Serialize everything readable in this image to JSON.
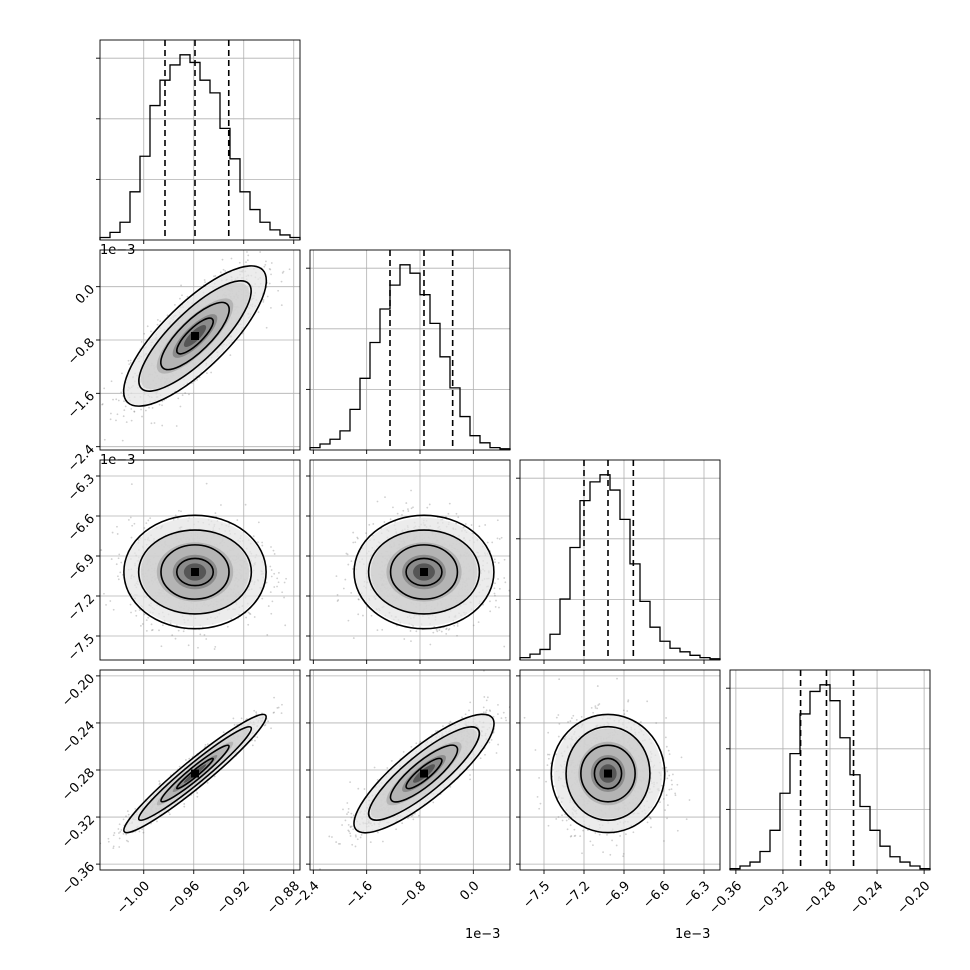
{
  "chart_data": {
    "type": "corner",
    "grid": true,
    "parameters": [
      {
        "index": 0,
        "range": [
          -1.035,
          -0.875
        ],
        "ticks": [
          -1.0,
          -0.96,
          -0.92,
          -0.88
        ],
        "tick_labels": [
          "−1.00",
          "−0.96",
          "−0.92",
          "−0.88"
        ],
        "offset_text": "",
        "quantiles": [
          -0.983,
          -0.959,
          -0.932
        ],
        "hist_counts": [
          2,
          6,
          14,
          38,
          66,
          106,
          126,
          138,
          146,
          140,
          126,
          116,
          88,
          64,
          38,
          24,
          14,
          8,
          4,
          2
        ]
      },
      {
        "index": 1,
        "range": [
          -2.45,
          0.55
        ],
        "ticks": [
          -2.4,
          -1.6,
          -0.8,
          0.0
        ],
        "tick_labels": [
          "−2.4",
          "−1.6",
          "−0.8",
          "0.0"
        ],
        "offset_text": "1e−3",
        "quantiles": [
          -1.25,
          -0.74,
          -0.31
        ],
        "hist_counts": [
          2,
          5,
          9,
          16,
          34,
          60,
          90,
          118,
          138,
          155,
          148,
          130,
          106,
          78,
          52,
          28,
          12,
          6,
          2,
          1
        ]
      },
      {
        "index": 2,
        "range": [
          -7.68,
          -6.18
        ],
        "ticks": [
          -7.5,
          -7.2,
          -6.9,
          -6.6,
          -6.3
        ],
        "tick_labels": [
          "−7.5",
          "−7.2",
          "−6.9",
          "−6.6",
          "−6.3"
        ],
        "offset_text": "1e−3",
        "quantiles": [
          -7.2,
          -7.02,
          -6.83
        ],
        "hist_counts": [
          2,
          5,
          9,
          22,
          52,
          96,
          136,
          152,
          158,
          145,
          120,
          82,
          50,
          28,
          16,
          10,
          7,
          4,
          2,
          1
        ]
      },
      {
        "index": 3,
        "range": [
          -0.365,
          -0.195
        ],
        "ticks": [
          -0.36,
          -0.32,
          -0.28,
          -0.24,
          -0.2
        ],
        "tick_labels": [
          "−0.36",
          "−0.32",
          "−0.28",
          "−0.24",
          "−0.20"
        ],
        "offset_text": "",
        "quantiles": [
          -0.305,
          -0.283,
          -0.26
        ],
        "hist_counts": [
          1,
          3,
          6,
          14,
          30,
          58,
          88,
          118,
          135,
          140,
          128,
          100,
          72,
          48,
          30,
          18,
          10,
          6,
          3,
          1
        ]
      }
    ],
    "pairs": [
      {
        "x": 0,
        "y": 1,
        "correlation": 0.8,
        "mean_x": -0.959,
        "mean_y": -0.74
      },
      {
        "x": 0,
        "y": 2,
        "correlation": 0.0,
        "mean_x": -0.959,
        "mean_y": -7.02
      },
      {
        "x": 1,
        "y": 2,
        "correlation": 0.0,
        "mean_x": -0.74,
        "mean_y": -7.02
      },
      {
        "x": 0,
        "y": 3,
        "correlation": 0.96,
        "mean_x": -0.959,
        "mean_y": -0.283
      },
      {
        "x": 1,
        "y": 3,
        "correlation": 0.85,
        "mean_x": -0.74,
        "mean_y": -0.283
      },
      {
        "x": 2,
        "y": 3,
        "correlation": 0.0,
        "mean_x": -7.02,
        "mean_y": -0.283
      }
    ],
    "colors": {
      "line": "#000000",
      "quantile_line": "#000000",
      "grid": "#b0b0b0",
      "density_dark": "#000000"
    }
  }
}
